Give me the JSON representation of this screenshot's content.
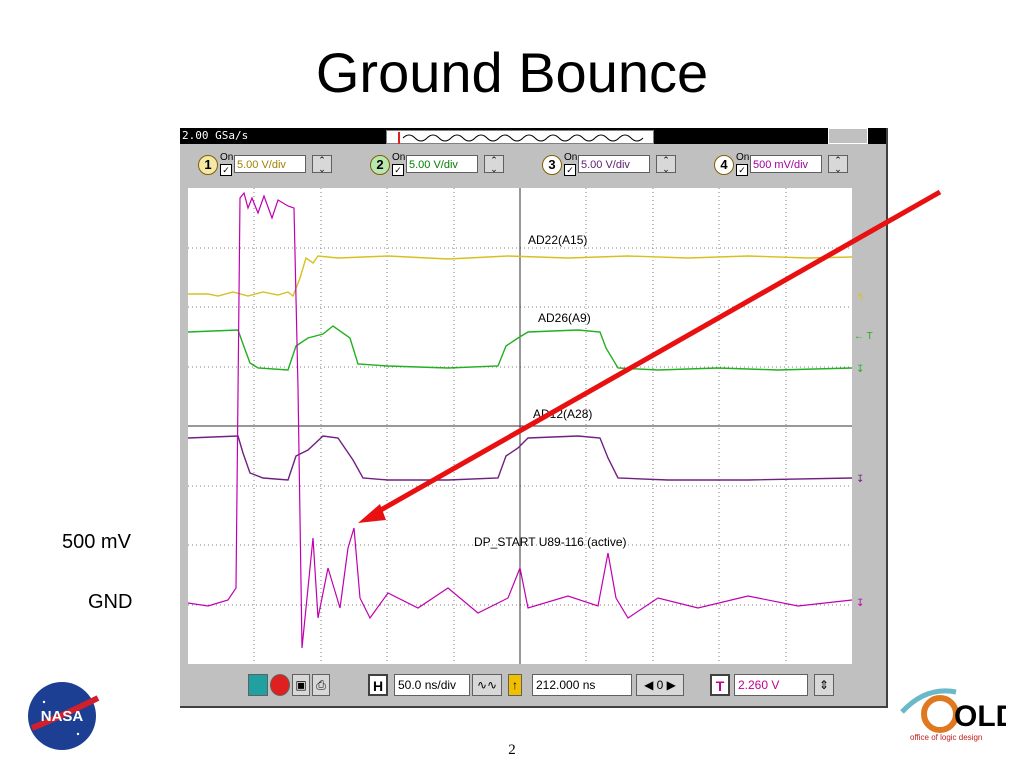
{
  "slide": {
    "title": "Ground Bounce",
    "page_number": "2",
    "label_500mv": "500 mV",
    "label_gnd": "GND"
  },
  "scope": {
    "sample_rate": "2.00 GSa/s",
    "channels": [
      {
        "num": "1",
        "on_label": "On",
        "scale": "5.00 V/div",
        "color": "#d8c020"
      },
      {
        "num": "2",
        "on_label": "On",
        "scale": "5.00 V/div",
        "color": "#20b020"
      },
      {
        "num": "3",
        "on_label": "On",
        "scale": "5.00 V/div",
        "color": "#702080"
      },
      {
        "num": "4",
        "on_label": "On",
        "scale": "500 mV/div",
        "color": "#c000b0"
      }
    ],
    "traces": {
      "t1": "AD22(A15)",
      "t2": "AD26(A9)",
      "t3": "AD12(A28)",
      "t4": "DP_START U89-116 (active)"
    },
    "markers": {
      "trigger": "← T"
    },
    "bottom": {
      "h_label": "H",
      "time_div": "50.0 ns/div",
      "position": "212.000 ns",
      "t_label": "T",
      "trigger_level": "2.260 V",
      "zero": "0"
    }
  },
  "annotation": {
    "arrow_color": "#e81010"
  },
  "logos": {
    "nasa": "NASA",
    "old_brand": "OLD",
    "old_caption": "office of logic design"
  }
}
